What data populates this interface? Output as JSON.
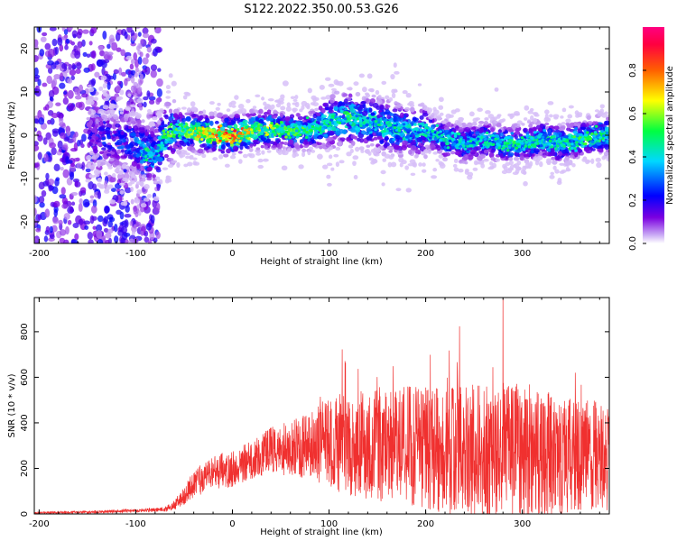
{
  "chart_data": [
    {
      "type": "heatmap",
      "title": "S122.2022.350.00.53.G26",
      "xlabel": "Height of straight line (km)",
      "ylabel": "Frequency (Hz)",
      "xlim": [
        -205,
        390
      ],
      "ylim": [
        -25,
        25
      ],
      "xticks": [
        -200,
        -100,
        0,
        100,
        200,
        300
      ],
      "yticks": [
        -20,
        -10,
        0,
        10,
        20
      ],
      "colorbar": {
        "label": "Normalized spectral amplitude",
        "range": [
          0,
          1
        ],
        "ticks": [
          0.0,
          0.2,
          0.4,
          0.6,
          0.8
        ],
        "colormap": [
          "#ffffff",
          "#c9a9f5",
          "#7b00e0",
          "#0000ff",
          "#00d8ff",
          "#00ff40",
          "#ffff00",
          "#ff6000",
          "#ff0040"
        ]
      },
      "ridge": {
        "x": [
          -200,
          -150,
          -100,
          -90,
          -80,
          -70,
          -60,
          -40,
          -20,
          0,
          20,
          40,
          60,
          80,
          100,
          120,
          140,
          160,
          180,
          200,
          220,
          240,
          260,
          280,
          300,
          320,
          340,
          360,
          380
        ],
        "y": [
          0,
          0,
          -2,
          -4,
          -5,
          0,
          1,
          1,
          0,
          0,
          1,
          1.5,
          1,
          1,
          3,
          4,
          3,
          2,
          1,
          1,
          -1,
          -2,
          -1,
          -2,
          -2,
          -1,
          -2,
          -1,
          0
        ],
        "peak_amplitude": [
          0.2,
          0.2,
          0.35,
          0.5,
          0.4,
          0.55,
          0.6,
          0.75,
          0.8,
          0.95,
          0.7,
          0.65,
          0.55,
          0.55,
          0.5,
          0.55,
          0.5,
          0.5,
          0.45,
          0.45,
          0.45,
          0.45,
          0.45,
          0.5,
          0.5,
          0.5,
          0.5,
          0.55,
          0.55
        ]
      }
    },
    {
      "type": "line",
      "xlabel": "Height of straight line (km)",
      "ylabel": "SNR (10 * v/v)",
      "xlim": [
        -205,
        390
      ],
      "ylim": [
        0,
        950
      ],
      "xticks": [
        -200,
        -100,
        0,
        100,
        200,
        300
      ],
      "yticks": [
        0,
        200,
        400,
        600,
        800
      ],
      "color": "#f0302f",
      "envelope": {
        "x": [
          -205,
          -150,
          -100,
          -70,
          -60,
          -50,
          -40,
          -30,
          -20,
          -10,
          0,
          20,
          40,
          60,
          80,
          100,
          120,
          140,
          160,
          180,
          200,
          220,
          240,
          260,
          280,
          300,
          320,
          340,
          360,
          380,
          390
        ],
        "mean": [
          5,
          8,
          15,
          20,
          40,
          80,
          130,
          160,
          180,
          190,
          200,
          240,
          280,
          290,
          300,
          310,
          310,
          300,
          300,
          300,
          290,
          280,
          280,
          270,
          280,
          280,
          270,
          260,
          260,
          260,
          240
        ],
        "spread": [
          5,
          6,
          8,
          10,
          20,
          40,
          60,
          70,
          70,
          80,
          80,
          90,
          110,
          120,
          150,
          200,
          230,
          240,
          250,
          260,
          270,
          280,
          290,
          300,
          300,
          300,
          280,
          260,
          250,
          240,
          230
        ]
      },
      "peak": {
        "x": 280,
        "y": 945
      }
    }
  ]
}
